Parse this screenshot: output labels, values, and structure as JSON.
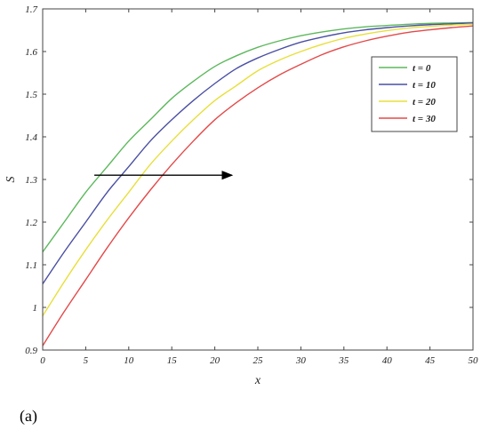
{
  "panel_label": "(a)",
  "chart_data": {
    "type": "line",
    "title": "",
    "xlabel": "x",
    "ylabel": "S",
    "xlim": [
      0,
      50
    ],
    "ylim": [
      0.9,
      1.7
    ],
    "xticks": [
      0,
      5,
      10,
      15,
      20,
      25,
      30,
      35,
      40,
      45,
      50
    ],
    "yticks": [
      0.9,
      1,
      1.1,
      1.2,
      1.3,
      1.4,
      1.5,
      1.6,
      1.7
    ],
    "grid": false,
    "legend_position": "top-right",
    "x": [
      0,
      2.5,
      5,
      7.5,
      10,
      12.5,
      15,
      17.5,
      20,
      22.5,
      25,
      27.5,
      30,
      32.5,
      35,
      37.5,
      40,
      42.5,
      45,
      47.5,
      50
    ],
    "series": [
      {
        "name": "t = 0",
        "color": "#5cb85c",
        "values": [
          1.13,
          1.2,
          1.27,
          1.33,
          1.39,
          1.44,
          1.49,
          1.53,
          1.565,
          1.59,
          1.61,
          1.625,
          1.637,
          1.646,
          1.653,
          1.658,
          1.661,
          1.664,
          1.666,
          1.667,
          1.668
        ]
      },
      {
        "name": "t = 10",
        "color": "#4a4fa3",
        "values": [
          1.055,
          1.13,
          1.2,
          1.27,
          1.33,
          1.39,
          1.44,
          1.485,
          1.525,
          1.56,
          1.585,
          1.605,
          1.622,
          1.634,
          1.644,
          1.651,
          1.656,
          1.66,
          1.663,
          1.665,
          1.667
        ]
      },
      {
        "name": "t = 20",
        "color": "#e8df3a",
        "values": [
          0.98,
          1.06,
          1.135,
          1.205,
          1.27,
          1.335,
          1.39,
          1.44,
          1.485,
          1.52,
          1.555,
          1.58,
          1.6,
          1.617,
          1.631,
          1.641,
          1.649,
          1.655,
          1.659,
          1.662,
          1.664
        ]
      },
      {
        "name": "t = 30",
        "color": "#e34a4a",
        "values": [
          0.91,
          0.99,
          1.065,
          1.14,
          1.21,
          1.275,
          1.335,
          1.39,
          1.44,
          1.48,
          1.515,
          1.545,
          1.57,
          1.593,
          1.611,
          1.625,
          1.636,
          1.645,
          1.651,
          1.656,
          1.66
        ]
      }
    ],
    "annotations": [
      {
        "type": "arrow",
        "from": [
          6,
          1.31
        ],
        "to": [
          22,
          1.31
        ],
        "color": "#000000"
      }
    ]
  }
}
